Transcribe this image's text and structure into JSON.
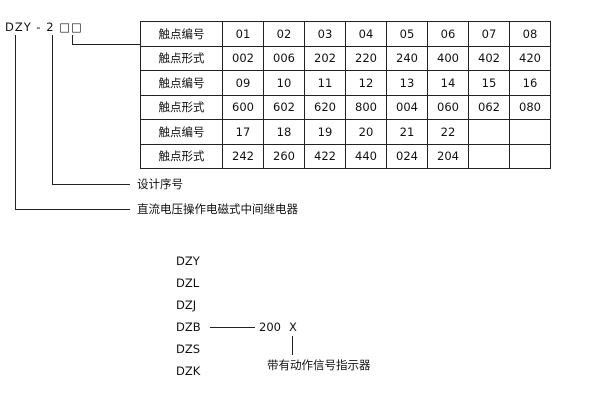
{
  "model_code": "DZY - 2 □□",
  "table": {
    "rows": [
      [
        "触点编号",
        "01",
        "02",
        "03",
        "04",
        "05",
        "06",
        "07",
        "08"
      ],
      [
        "触点形式",
        "002",
        "006",
        "202",
        "220",
        "240",
        "400",
        "402",
        "420"
      ],
      [
        "触点编号",
        "09",
        "10",
        "11",
        "12",
        "13",
        "14",
        "15",
        "16"
      ],
      [
        "触点形式",
        "600",
        "602",
        "620",
        "800",
        "004",
        "060",
        "062",
        "080"
      ],
      [
        "触点编号",
        "17",
        "18",
        "19",
        "20",
        "21",
        "22",
        "",
        ""
      ],
      [
        "触点形式",
        "242",
        "260",
        "422",
        "440",
        "024",
        "204",
        "",
        ""
      ]
    ]
  },
  "labels": {
    "design_serial": "设计序号",
    "relay_desc": "直流电压操作电磁式中间继电器"
  },
  "series_list": [
    "DZY",
    "DZL",
    "DZJ",
    "DZB",
    "DZS",
    "DZK"
  ],
  "variant": {
    "code": "200",
    "suffix": "X",
    "suffix_desc": "带有动作信号指示器"
  }
}
